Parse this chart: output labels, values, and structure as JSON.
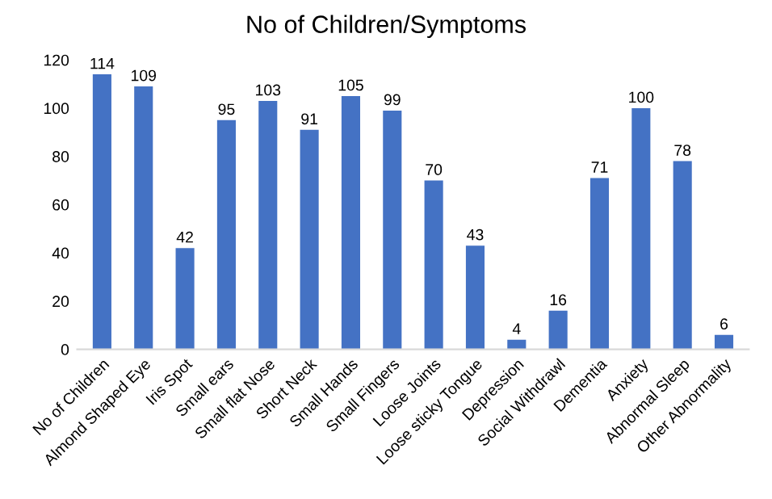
{
  "chart_data": {
    "type": "bar",
    "title": "No of Children/Symptoms",
    "categories": [
      "No of Children",
      "Almond Shaped Eye",
      "Iris Spot",
      "Small ears",
      "Small flat Nose",
      "Short Neck",
      "Small Hands",
      "Small Fingers",
      "Loose Joints",
      "Loose sticky Tongue",
      "Depression",
      "Social Withdrawl",
      "Dementia",
      "Anxiety",
      "Abnormal Sleep",
      "Other Abnormality"
    ],
    "values": [
      114,
      109,
      42,
      95,
      103,
      91,
      105,
      99,
      70,
      43,
      4,
      16,
      71,
      100,
      78,
      6
    ],
    "color": "#4472c4",
    "ylim": [
      0,
      120
    ],
    "yticks": [
      0,
      20,
      40,
      60,
      80,
      100,
      120
    ],
    "grid": false,
    "data_labels": true
  }
}
